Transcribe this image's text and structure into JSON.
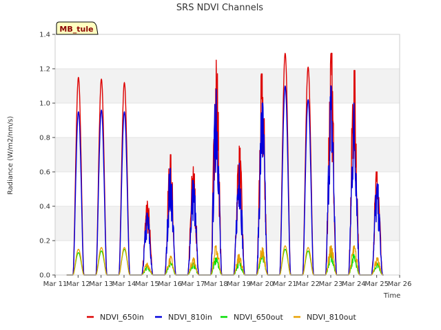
{
  "chart_data": {
    "type": "line",
    "title": "SRS NDVI Channels",
    "xlabel": "Time",
    "ylabel": "Radiance (W/m2/nm/s)",
    "ylim": [
      0,
      1.4
    ],
    "xlim": [
      11,
      26
    ],
    "yticks": [
      "0.0",
      "0.2",
      "0.4",
      "0.6",
      "0.8",
      "1.0",
      "1.2",
      "1.4"
    ],
    "xticks": [
      "Mar 11",
      "Mar 12",
      "Mar 13",
      "Mar 14",
      "Mar 15",
      "Mar 16",
      "Mar 17",
      "Mar 18",
      "Mar 19",
      "Mar 20",
      "Mar 21",
      "Mar 22",
      "Mar 23",
      "Mar 24",
      "Mar 25",
      "Mar 26"
    ],
    "grid": "horizontal bands",
    "legend_position": "bottom",
    "annotation": "MB_tule",
    "series": [
      {
        "name": "NDVI_650in",
        "color": "#dd0000",
        "daily_peaks": [
          1.15,
          1.14,
          1.12,
          0.43,
          0.7,
          0.63,
          1.25,
          0.75,
          1.17,
          1.29,
          1.21,
          1.29,
          1.19,
          0.6
        ]
      },
      {
        "name": "NDVI_810in",
        "color": "#0000dd",
        "daily_peaks": [
          0.95,
          0.96,
          0.95,
          0.36,
          0.62,
          0.55,
          1.08,
          0.65,
          1.0,
          1.1,
          1.02,
          1.1,
          1.0,
          0.53
        ]
      },
      {
        "name": "NDVI_650out",
        "color": "#00dd00",
        "daily_peaks": [
          0.13,
          0.14,
          0.15,
          0.05,
          0.08,
          0.07,
          0.1,
          0.08,
          0.12,
          0.15,
          0.14,
          0.13,
          0.12,
          0.07
        ]
      },
      {
        "name": "NDVI_810out",
        "color": "#e8a000",
        "daily_peaks": [
          0.15,
          0.16,
          0.16,
          0.07,
          0.11,
          0.1,
          0.17,
          0.12,
          0.16,
          0.17,
          0.16,
          0.17,
          0.17,
          0.1
        ]
      }
    ],
    "day_starts": [
      12,
      13,
      14,
      15,
      16,
      17,
      18,
      19,
      20,
      21,
      22,
      23,
      24,
      25
    ]
  }
}
